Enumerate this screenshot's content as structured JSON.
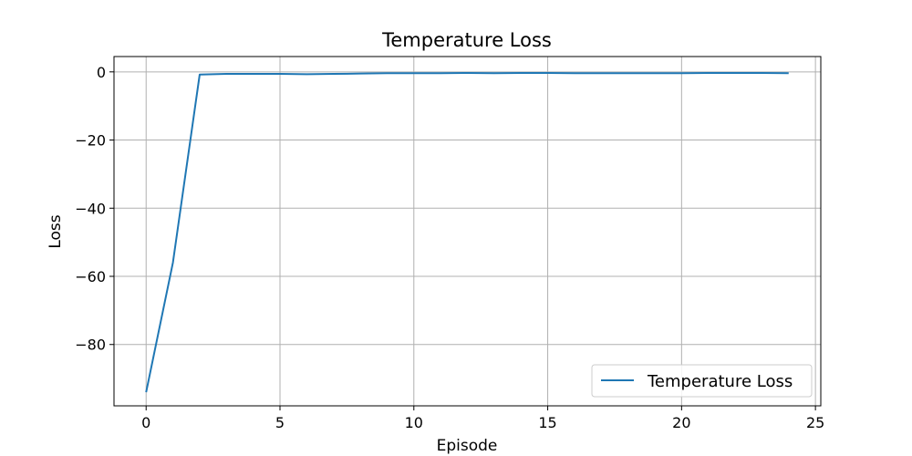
{
  "chart_data": {
    "type": "line",
    "title": "Temperature Loss",
    "xlabel": "Episode",
    "ylabel": "Loss",
    "xlim": [
      -1.2,
      25.2
    ],
    "ylim": [
      -98,
      4.5
    ],
    "xticks": [
      0,
      5,
      10,
      15,
      20,
      25
    ],
    "yticks": [
      0,
      -20,
      -40,
      -60,
      -80
    ],
    "grid": true,
    "legend_position": "bottom-right",
    "series": [
      {
        "name": "Temperature Loss",
        "color": "#1f77b4",
        "x": [
          0,
          1,
          2,
          3,
          4,
          5,
          6,
          7,
          8,
          9,
          10,
          11,
          12,
          13,
          14,
          15,
          16,
          17,
          18,
          19,
          20,
          21,
          22,
          23,
          24
        ],
        "y": [
          -94,
          -56,
          -0.8,
          -0.6,
          -0.6,
          -0.6,
          -0.7,
          -0.6,
          -0.5,
          -0.4,
          -0.4,
          -0.4,
          -0.3,
          -0.4,
          -0.3,
          -0.3,
          -0.4,
          -0.4,
          -0.4,
          -0.4,
          -0.4,
          -0.3,
          -0.3,
          -0.3,
          -0.4
        ]
      }
    ]
  }
}
